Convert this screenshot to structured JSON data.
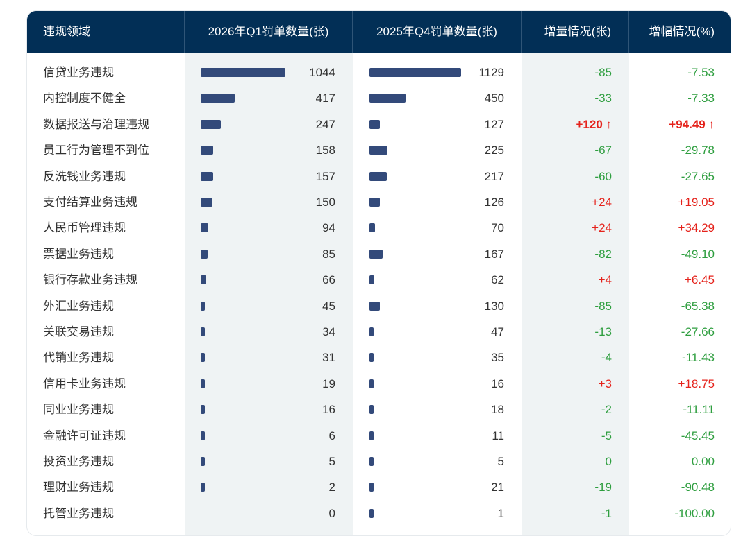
{
  "colors": {
    "header": "#022f56",
    "bar": "#334a7a",
    "increase": "#e5221b",
    "decrease": "#2e9e3f",
    "shade": "#eff3f4"
  },
  "headers": [
    "违规领域",
    "2026年Q1罚单数量(张)",
    "2025年Q4罚单数量(张)",
    "增量情况(张)",
    "增幅情况(%)"
  ],
  "chart_data": {
    "type": "table",
    "columns": [
      "违规领域",
      "2026年Q1罚单数量(张)",
      "2025年Q4罚单数量(张)",
      "增量情况(张)",
      "增幅情况(%)"
    ],
    "rows": [
      {
        "name": "信贷业务违规",
        "q1": 1044,
        "q4": 1129,
        "delta": "-85",
        "pct": "-7.53"
      },
      {
        "name": "内控制度不健全",
        "q1": 417,
        "q4": 450,
        "delta": "-33",
        "pct": "-7.33"
      },
      {
        "name": "数据报送与治理违规",
        "q1": 247,
        "q4": 127,
        "delta": "+120 ↑",
        "pct": "+94.49 ↑",
        "highlight": true
      },
      {
        "name": "员工行为管理不到位",
        "q1": 158,
        "q4": 225,
        "delta": "-67",
        "pct": "-29.78"
      },
      {
        "name": "反洗钱业务违规",
        "q1": 157,
        "q4": 217,
        "delta": "-60",
        "pct": "-27.65"
      },
      {
        "name": "支付结算业务违规",
        "q1": 150,
        "q4": 126,
        "delta": "+24",
        "pct": "+19.05"
      },
      {
        "name": "人民币管理违规",
        "q1": 94,
        "q4": 70,
        "delta": "+24",
        "pct": "+34.29"
      },
      {
        "name": "票据业务违规",
        "q1": 85,
        "q4": 167,
        "delta": "-82",
        "pct": "-49.10"
      },
      {
        "name": "银行存款业务违规",
        "q1": 66,
        "q4": 62,
        "delta": "+4",
        "pct": "+6.45"
      },
      {
        "name": "外汇业务违规",
        "q1": 45,
        "q4": 130,
        "delta": "-85",
        "pct": "-65.38"
      },
      {
        "name": "关联交易违规",
        "q1": 34,
        "q4": 47,
        "delta": "-13",
        "pct": "-27.66"
      },
      {
        "name": "代销业务违规",
        "q1": 31,
        "q4": 35,
        "delta": "-4",
        "pct": "-11.43"
      },
      {
        "name": "信用卡业务违规",
        "q1": 19,
        "q4": 16,
        "delta": "+3",
        "pct": "+18.75"
      },
      {
        "name": "同业业务违规",
        "q1": 16,
        "q4": 18,
        "delta": "-2",
        "pct": "-11.11"
      },
      {
        "name": "金融许可证违规",
        "q1": 6,
        "q4": 11,
        "delta": "-5",
        "pct": "-45.45"
      },
      {
        "name": "投资业务违规",
        "q1": 5,
        "q4": 5,
        "delta": "0",
        "pct": "0.00"
      },
      {
        "name": "理财业务违规",
        "q1": 2,
        "q4": 21,
        "delta": "-19",
        "pct": "-90.48"
      },
      {
        "name": "托管业务违规",
        "q1": 0,
        "q4": 1,
        "delta": "-1",
        "pct": "-100.00"
      }
    ]
  }
}
